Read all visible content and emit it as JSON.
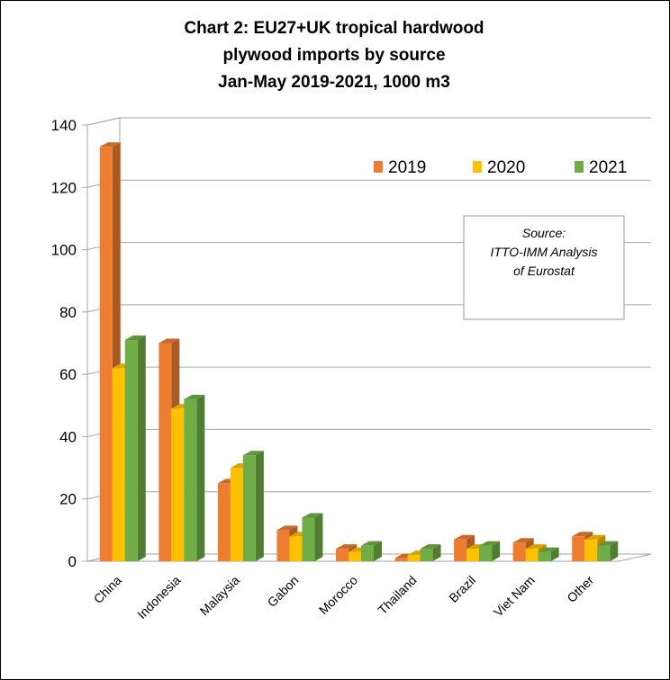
{
  "chart_data": {
    "type": "bar",
    "title_lines": [
      "Chart 2: EU27+UK tropical  hardwood",
      "plywood imports by source",
      "Jan-May 2019-2021, 1000 m3"
    ],
    "xlabel": "",
    "ylabel": "",
    "ylim": [
      0,
      140
    ],
    "y_ticks": [
      "0",
      "20",
      "40",
      "60",
      "80",
      "100",
      "120",
      "140"
    ],
    "categories": [
      "China",
      "Indonesia",
      "Malaysia",
      "Gabon",
      "Morocco",
      "Thailand",
      "Brazil",
      "Viet Nam",
      "Other"
    ],
    "series": [
      {
        "name": "2019",
        "values": [
          133,
          70,
          25,
          10,
          4,
          1,
          7,
          6,
          8
        ]
      },
      {
        "name": "2020",
        "values": [
          62,
          49,
          30,
          8,
          3,
          2,
          4,
          4,
          7
        ]
      },
      {
        "name": "2021",
        "values": [
          71,
          52,
          34,
          14,
          5,
          4,
          5,
          3,
          5
        ]
      }
    ],
    "grid": true,
    "legend_position": "top-right",
    "colors": {
      "2019": "#ED7D31",
      "2020": "#FFC000",
      "2021": "#70AD47"
    },
    "annotation_lines": [
      "Source:",
      "ITTO-IMM Analysis",
      "of Eurostat"
    ]
  }
}
